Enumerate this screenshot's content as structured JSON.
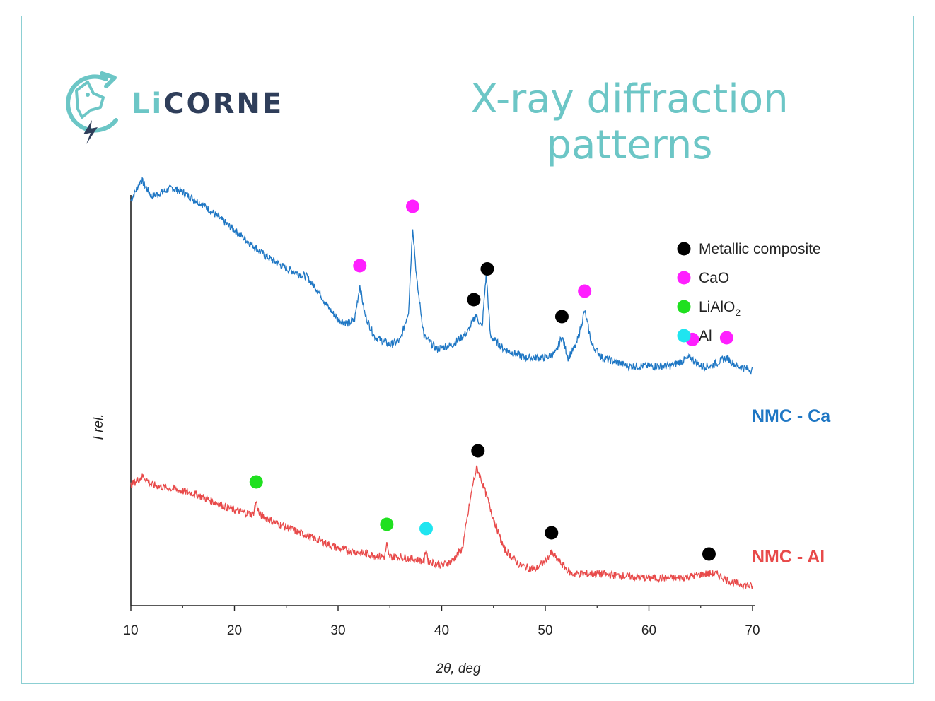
{
  "header": {
    "logo_li": "Li",
    "logo_rest": "CORNE",
    "title": "X-ray diffraction patterns"
  },
  "chart_data": {
    "type": "line",
    "xlabel": "2θ, deg",
    "ylabel": "I rel.",
    "xlim": [
      10,
      70
    ],
    "xticks": [
      "10",
      "20",
      "30",
      "40",
      "50",
      "60",
      "70"
    ],
    "y_scale": "relative intensity (no numeric ticks)",
    "series": [
      {
        "name": "NMC - Ca",
        "color": "#1f77c4",
        "points": [
          [
            10,
            0.66
          ],
          [
            11,
            0.71
          ],
          [
            12,
            0.67
          ],
          [
            14,
            0.69
          ],
          [
            15,
            0.68
          ],
          [
            17,
            0.65
          ],
          [
            19,
            0.61
          ],
          [
            21,
            0.57
          ],
          [
            23,
            0.53
          ],
          [
            25,
            0.5
          ],
          [
            27,
            0.48
          ],
          [
            28,
            0.45
          ],
          [
            29,
            0.41
          ],
          [
            30,
            0.38
          ],
          [
            31,
            0.37
          ],
          [
            31.6,
            0.38
          ],
          [
            32.1,
            0.46
          ],
          [
            32.6,
            0.39
          ],
          [
            33.5,
            0.34
          ],
          [
            35,
            0.32
          ],
          [
            36,
            0.33
          ],
          [
            36.8,
            0.4
          ],
          [
            37.2,
            0.6
          ],
          [
            37.6,
            0.47
          ],
          [
            38.3,
            0.34
          ],
          [
            39.5,
            0.31
          ],
          [
            41,
            0.32
          ],
          [
            42.5,
            0.35
          ],
          [
            43.3,
            0.39
          ],
          [
            43.9,
            0.36
          ],
          [
            44.3,
            0.49
          ],
          [
            44.7,
            0.34
          ],
          [
            46,
            0.31
          ],
          [
            48,
            0.29
          ],
          [
            50,
            0.29
          ],
          [
            51,
            0.3
          ],
          [
            51.6,
            0.34
          ],
          [
            52.2,
            0.29
          ],
          [
            53,
            0.32
          ],
          [
            53.8,
            0.4
          ],
          [
            54.5,
            0.32
          ],
          [
            55.5,
            0.29
          ],
          [
            58,
            0.27
          ],
          [
            62,
            0.27
          ],
          [
            64,
            0.29
          ],
          [
            65,
            0.27
          ],
          [
            66,
            0.27
          ],
          [
            67.5,
            0.29
          ],
          [
            68.5,
            0.27
          ],
          [
            70,
            0.26
          ]
        ]
      },
      {
        "name": "NMC - Al",
        "color": "#e84a4a",
        "points": [
          [
            10,
            0.24
          ],
          [
            11.2,
            0.26
          ],
          [
            12,
            0.24
          ],
          [
            14,
            0.23
          ],
          [
            16,
            0.22
          ],
          [
            18,
            0.2
          ],
          [
            20,
            0.18
          ],
          [
            21.8,
            0.17
          ],
          [
            22.1,
            0.2
          ],
          [
            22.4,
            0.17
          ],
          [
            24,
            0.15
          ],
          [
            26,
            0.13
          ],
          [
            28,
            0.11
          ],
          [
            30,
            0.09
          ],
          [
            32,
            0.08
          ],
          [
            34.5,
            0.07
          ],
          [
            34.7,
            0.1
          ],
          [
            34.9,
            0.07
          ],
          [
            36,
            0.07
          ],
          [
            38.3,
            0.06
          ],
          [
            38.5,
            0.09
          ],
          [
            38.7,
            0.06
          ],
          [
            40,
            0.05
          ],
          [
            41,
            0.06
          ],
          [
            42,
            0.09
          ],
          [
            43,
            0.24
          ],
          [
            43.4,
            0.28
          ],
          [
            44,
            0.24
          ],
          [
            45,
            0.16
          ],
          [
            46,
            0.09
          ],
          [
            47.5,
            0.05
          ],
          [
            49,
            0.04
          ],
          [
            50,
            0.06
          ],
          [
            50.6,
            0.08
          ],
          [
            51.3,
            0.06
          ],
          [
            52.5,
            0.03
          ],
          [
            55,
            0.03
          ],
          [
            60,
            0.02
          ],
          [
            63,
            0.02
          ],
          [
            65.5,
            0.03
          ],
          [
            66.5,
            0.03
          ],
          [
            68,
            0.01
          ],
          [
            70,
            0.0
          ]
        ]
      }
    ],
    "legend": {
      "placement": "top-right",
      "entries": [
        {
          "label": "Metallic  composite",
          "color": "#000000"
        },
        {
          "label": "CaO",
          "color": "#ff1fff"
        },
        {
          "label": "LiAlO",
          "sub": "2",
          "color": "#1fe01f"
        },
        {
          "label": "Al",
          "color": "#1fe5f0"
        }
      ]
    },
    "markers": [
      {
        "series": "NMC - Ca",
        "phase": "CaO",
        "x": 32.1,
        "color": "#ff1fff"
      },
      {
        "series": "NMC - Ca",
        "phase": "CaO",
        "x": 37.2,
        "color": "#ff1fff"
      },
      {
        "series": "NMC - Ca",
        "phase": "Metallic composite",
        "x": 43.1,
        "color": "#000000"
      },
      {
        "series": "NMC - Ca",
        "phase": "Metallic composite",
        "x": 44.4,
        "color": "#000000"
      },
      {
        "series": "NMC - Ca",
        "phase": "Metallic composite",
        "x": 51.6,
        "color": "#000000"
      },
      {
        "series": "NMC - Ca",
        "phase": "CaO",
        "x": 53.8,
        "color": "#ff1fff"
      },
      {
        "series": "NMC - Ca",
        "phase": "CaO",
        "x": 64.2,
        "color": "#ff1fff"
      },
      {
        "series": "NMC - Ca",
        "phase": "CaO",
        "x": 67.5,
        "color": "#ff1fff"
      },
      {
        "series": "NMC - Al",
        "phase": "LiAlO2",
        "x": 22.1,
        "color": "#1fe01f"
      },
      {
        "series": "NMC - Al",
        "phase": "LiAlO2",
        "x": 34.7,
        "color": "#1fe01f"
      },
      {
        "series": "NMC - Al",
        "phase": "Al",
        "x": 38.5,
        "color": "#1fe5f0"
      },
      {
        "series": "NMC - Al",
        "phase": "Metallic composite",
        "x": 43.5,
        "color": "#000000"
      },
      {
        "series": "NMC - Al",
        "phase": "Metallic composite",
        "x": 50.6,
        "color": "#000000"
      },
      {
        "series": "NMC - Al",
        "phase": "Metallic composite",
        "x": 65.8,
        "color": "#000000"
      }
    ]
  }
}
